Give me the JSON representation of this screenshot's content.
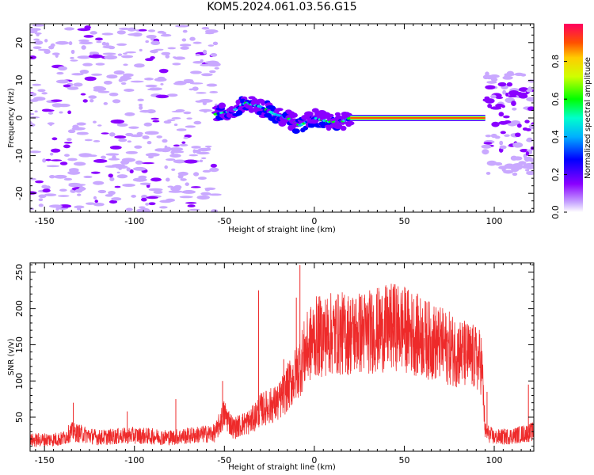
{
  "title": "KOM5.2024.061.03.56.G15",
  "chart_data": [
    {
      "type": "heatmap",
      "xlabel": "Height of straight line (km)",
      "ylabel": "Frequency (Hz)",
      "xlim": [
        -158,
        122
      ],
      "ylim": [
        -25,
        25
      ],
      "xticks": [
        -150,
        -100,
        -50,
        0,
        50,
        100
      ],
      "yticks": [
        -20,
        -10,
        0,
        10,
        20
      ],
      "colorbar": {
        "label": "Normalized spectral amplitude",
        "range": [
          0.0,
          1.0
        ],
        "ticks": [
          0.0,
          0.2,
          0.4,
          0.6,
          0.8
        ],
        "colormap": "rainbow"
      },
      "features": [
        {
          "name": "sparse-noise",
          "x_range": [
            -158,
            -60
          ],
          "freq_range": [
            -25,
            25
          ],
          "amplitude": 0.1
        },
        {
          "name": "signal-trace",
          "points": [
            [
              -55,
              1
            ],
            [
              -45,
              2
            ],
            [
              -38,
              4
            ],
            [
              -30,
              3
            ],
            [
              -22,
              1
            ],
            [
              -15,
              0
            ],
            [
              -8,
              -2
            ],
            [
              0,
              0
            ],
            [
              8,
              -1
            ],
            [
              15,
              -1
            ],
            [
              20,
              0
            ],
            [
              95,
              0
            ]
          ],
          "amplitude": 0.95
        },
        {
          "name": "right-noise",
          "x_range": [
            95,
            122
          ],
          "freq_range": [
            -15,
            12
          ],
          "amplitude": 0.2
        }
      ]
    },
    {
      "type": "line",
      "xlabel": "Height of straight line (km)",
      "ylabel": "SNR (v/v)",
      "xlim": [
        -158,
        122
      ],
      "ylim": [
        3,
        263
      ],
      "xticks": [
        -150,
        -100,
        -50,
        0,
        50,
        100
      ],
      "yticks": [
        50,
        100,
        150,
        200,
        250
      ],
      "color": "#ee2a2a",
      "envelope": {
        "x": [
          -158,
          -140,
          -135,
          -120,
          -100,
          -80,
          -55,
          -50,
          -45,
          -35,
          -30,
          -20,
          -10,
          -5,
          0,
          10,
          20,
          30,
          40,
          45,
          50,
          60,
          70,
          80,
          90,
          93,
          95,
          100,
          110,
          122
        ],
        "y": [
          18,
          20,
          30,
          22,
          25,
          22,
          28,
          55,
          35,
          45,
          60,
          70,
          110,
          140,
          160,
          165,
          165,
          168,
          172,
          175,
          172,
          160,
          150,
          140,
          130,
          125,
          30,
          22,
          24,
          30
        ]
      },
      "spikes": [
        {
          "x": -134,
          "y": 70
        },
        {
          "x": -104,
          "y": 58
        },
        {
          "x": -77,
          "y": 75
        },
        {
          "x": -51,
          "y": 100
        },
        {
          "x": -31,
          "y": 225
        },
        {
          "x": -17,
          "y": 130
        },
        {
          "x": -10,
          "y": 215
        },
        {
          "x": -8,
          "y": 260
        },
        {
          "x": 44,
          "y": 230
        },
        {
          "x": 96,
          "y": 85
        },
        {
          "x": 119,
          "y": 95
        }
      ]
    }
  ]
}
